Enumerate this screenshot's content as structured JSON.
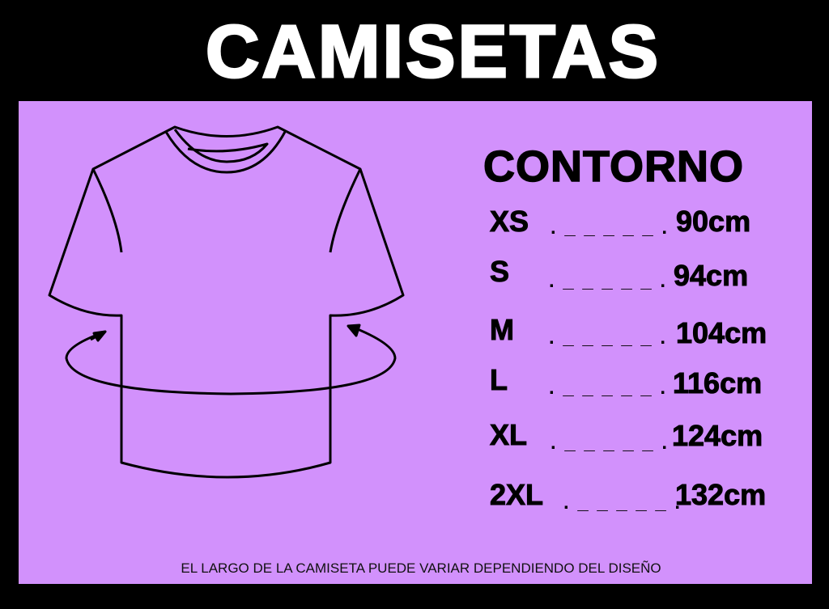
{
  "title": "CAMISETAS",
  "colors": {
    "background": "#000000",
    "panel": "#d291fc",
    "title": "#ffffff",
    "text": "#000000"
  },
  "illustration": {
    "icon": "t-shirt-with-circumference-arrow-icon"
  },
  "measure_heading": "CONTORNO",
  "sizes": [
    {
      "size": "XS",
      "leader": ". _ _ _ _ _ .",
      "value": "90cm"
    },
    {
      "size": "S",
      "leader": ". _ _ _ _ _ .",
      "value": "94cm"
    },
    {
      "size": "M",
      "leader": ". _ _ _ _ _ .",
      "value": "104cm"
    },
    {
      "size": "L",
      "leader": ". _ _ _ _ _ .",
      "value": "116cm"
    },
    {
      "size": "XL",
      "leader": ". _ _ _ _ _ .",
      "value": "124cm"
    },
    {
      "size": "2XL",
      "leader": ". _ _ _ _ _ .",
      "value": "132cm"
    }
  ],
  "footer_note": "EL LARGO DE LA CAMISETA PUEDE VARIAR DEPENDIENDO DEL DISEÑO"
}
